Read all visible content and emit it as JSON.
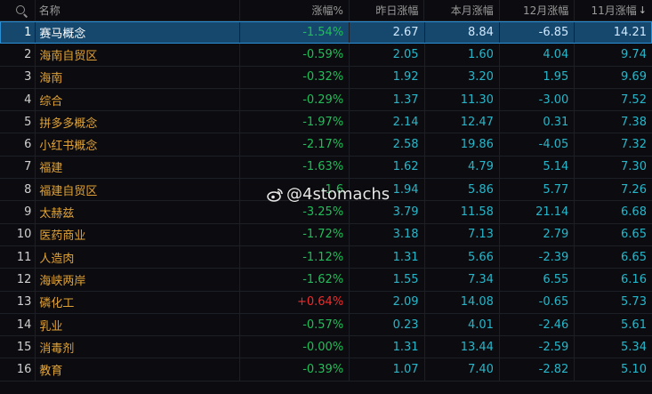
{
  "header": {
    "name_label": "名称",
    "change_label": "涨幅%",
    "yesterday_label": "昨日涨幅",
    "month_label": "本月涨幅",
    "dec_label": "12月涨幅",
    "nov_label": "11月涨幅",
    "sort_glyph": "↓"
  },
  "rows": [
    {
      "idx": "1",
      "name": "赛马概念",
      "pct": "-1.54%",
      "yest": "2.67",
      "month": "8.84",
      "dec": "-6.85",
      "nov": "14.21"
    },
    {
      "idx": "2",
      "name": "海南自贸区",
      "pct": "-0.59%",
      "yest": "2.05",
      "month": "1.60",
      "dec": "4.04",
      "nov": "9.74"
    },
    {
      "idx": "3",
      "name": "海南",
      "pct": "-0.32%",
      "yest": "1.92",
      "month": "3.20",
      "dec": "1.95",
      "nov": "9.69"
    },
    {
      "idx": "4",
      "name": "综合",
      "pct": "-0.29%",
      "yest": "1.37",
      "month": "11.30",
      "dec": "-3.00",
      "nov": "7.52"
    },
    {
      "idx": "5",
      "name": "拼多多概念",
      "pct": "-1.97%",
      "yest": "2.14",
      "month": "12.47",
      "dec": "0.31",
      "nov": "7.38"
    },
    {
      "idx": "6",
      "name": "小红书概念",
      "pct": "-2.17%",
      "yest": "2.58",
      "month": "19.86",
      "dec": "-4.05",
      "nov": "7.32"
    },
    {
      "idx": "7",
      "name": "福建",
      "pct": "-1.63%",
      "yest": "1.62",
      "month": "4.79",
      "dec": "5.14",
      "nov": "7.30"
    },
    {
      "idx": "8",
      "name": "福建自贸区",
      "pct": "-1.6",
      "yest": "1.94",
      "month": "5.86",
      "dec": "5.77",
      "nov": "7.26"
    },
    {
      "idx": "9",
      "name": "太赫兹",
      "pct": "-3.25%",
      "yest": "3.79",
      "month": "11.58",
      "dec": "21.14",
      "nov": "6.68"
    },
    {
      "idx": "10",
      "name": "医药商业",
      "pct": "-1.72%",
      "yest": "3.18",
      "month": "7.13",
      "dec": "2.79",
      "nov": "6.65"
    },
    {
      "idx": "11",
      "name": "人造肉",
      "pct": "-1.12%",
      "yest": "1.31",
      "month": "5.66",
      "dec": "-2.39",
      "nov": "6.65"
    },
    {
      "idx": "12",
      "name": "海峡两岸",
      "pct": "-1.62%",
      "yest": "1.55",
      "month": "7.34",
      "dec": "6.55",
      "nov": "6.16"
    },
    {
      "idx": "13",
      "name": "磷化工",
      "pct": "+0.64%",
      "yest": "2.09",
      "month": "14.08",
      "dec": "-0.65",
      "nov": "5.73"
    },
    {
      "idx": "14",
      "name": "乳业",
      "pct": "-0.57%",
      "yest": "0.23",
      "month": "4.01",
      "dec": "-2.46",
      "nov": "5.61"
    },
    {
      "idx": "15",
      "name": "消毒剂",
      "pct": "-0.00%",
      "yest": "1.31",
      "month": "13.44",
      "dec": "-2.59",
      "nov": "5.34"
    },
    {
      "idx": "16",
      "name": "教育",
      "pct": "-0.39%",
      "yest": "1.07",
      "month": "7.40",
      "dec": "-2.82",
      "nov": "5.10"
    }
  ],
  "watermark": {
    "text": "@4stomachs",
    "icon": "weibo-icon"
  },
  "colors": {
    "up": "#ef2b2b",
    "down": "#1fbf57",
    "value": "#27b6c9",
    "name": "#e0a235",
    "selected_bg": "#16486e"
  }
}
